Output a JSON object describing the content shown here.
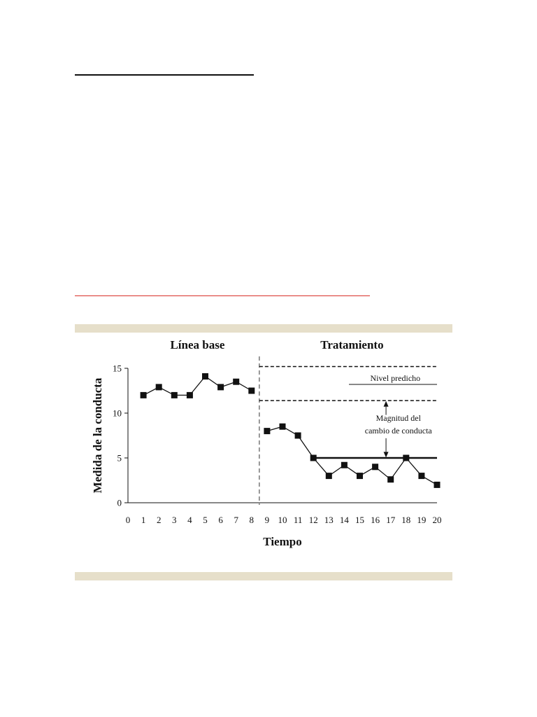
{
  "chart_data": {
    "type": "line",
    "xlabel": "Tiempo",
    "ylabel": "Medida de la conducta",
    "xlim": [
      0,
      20
    ],
    "ylim": [
      0,
      15
    ],
    "x_ticks": [
      0,
      1,
      2,
      3,
      4,
      5,
      6,
      7,
      8,
      9,
      10,
      11,
      12,
      13,
      14,
      15,
      16,
      17,
      18,
      19,
      20
    ],
    "y_ticks": [
      0,
      5,
      10,
      15
    ],
    "phase_change_x": 8.5,
    "phases": [
      {
        "label": "Línea base",
        "center_x": 4.5
      },
      {
        "label": "Tratamiento",
        "center_x": 14.5
      }
    ],
    "series": [
      {
        "phase": "Línea base",
        "x": [
          1,
          2,
          3,
          4,
          5,
          6,
          7,
          8
        ],
        "y": [
          12,
          12.9,
          12,
          12,
          14.1,
          12.9,
          13.5,
          12.5
        ]
      },
      {
        "phase": "Tratamiento",
        "x": [
          9,
          10,
          11,
          12,
          13,
          14,
          15,
          16,
          17,
          18,
          19,
          20
        ],
        "y": [
          8,
          8.5,
          7.5,
          5,
          3,
          4.2,
          3,
          4,
          2.6,
          5,
          3,
          2
        ]
      }
    ],
    "reference_lines": [
      {
        "y": 15.2,
        "x_start": 8.5,
        "x_end": 20,
        "style": "dashed"
      },
      {
        "y": 11.4,
        "x_start": 8.5,
        "x_end": 20,
        "style": "dashed"
      },
      {
        "y": 5,
        "x_start": 12,
        "x_end": 20,
        "style": "solid-thick"
      }
    ],
    "annotations": {
      "predicted_level": "Nivel predicho",
      "change_magnitude": [
        "Magnitud del",
        "cambio de conducta"
      ]
    },
    "grid": false,
    "legend": "none"
  }
}
